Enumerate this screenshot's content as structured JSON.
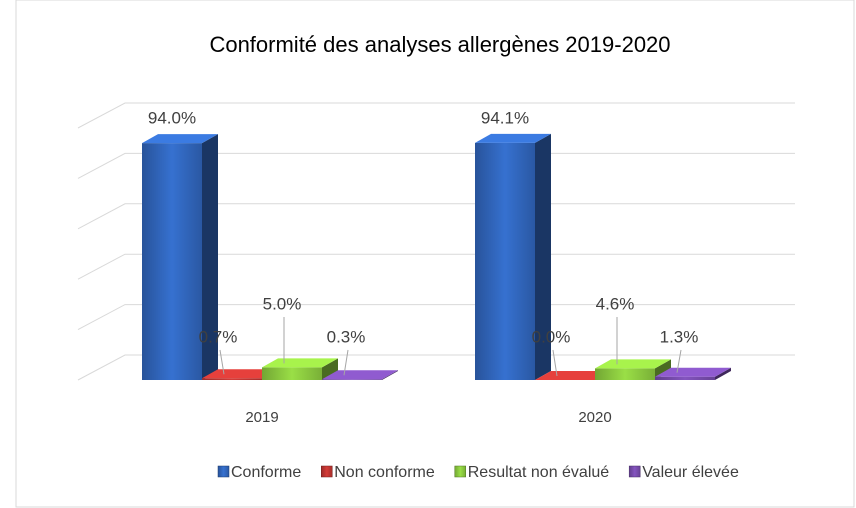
{
  "chart_data": {
    "type": "bar3d",
    "title": "Conformité des analyses allergènes 2019-2020",
    "categories": [
      "2019",
      "2020"
    ],
    "series": [
      {
        "name": "Conforme",
        "color": "#2f62b5",
        "values": [
          94.0,
          94.1
        ],
        "value_labels": [
          "94.0%",
          "94.1%"
        ]
      },
      {
        "name": "Non conforme",
        "color": "#b83330",
        "values": [
          0.7,
          0.0
        ],
        "value_labels": [
          "0.7%",
          "0.0%"
        ]
      },
      {
        "name": "Resultat non évalué",
        "color": "#86c23d",
        "values": [
          5.0,
          4.6
        ],
        "value_labels": [
          "5.0%",
          "4.6%"
        ]
      },
      {
        "name": "Valeur élevée",
        "color": "#7349a6",
        "values": [
          0.3,
          1.3
        ],
        "value_labels": [
          "0.3%",
          "1.3%"
        ]
      }
    ],
    "ylim": [
      0,
      100
    ],
    "yticks": [
      0,
      20,
      40,
      60,
      80,
      100
    ],
    "grid": true,
    "legend": "bottom"
  }
}
